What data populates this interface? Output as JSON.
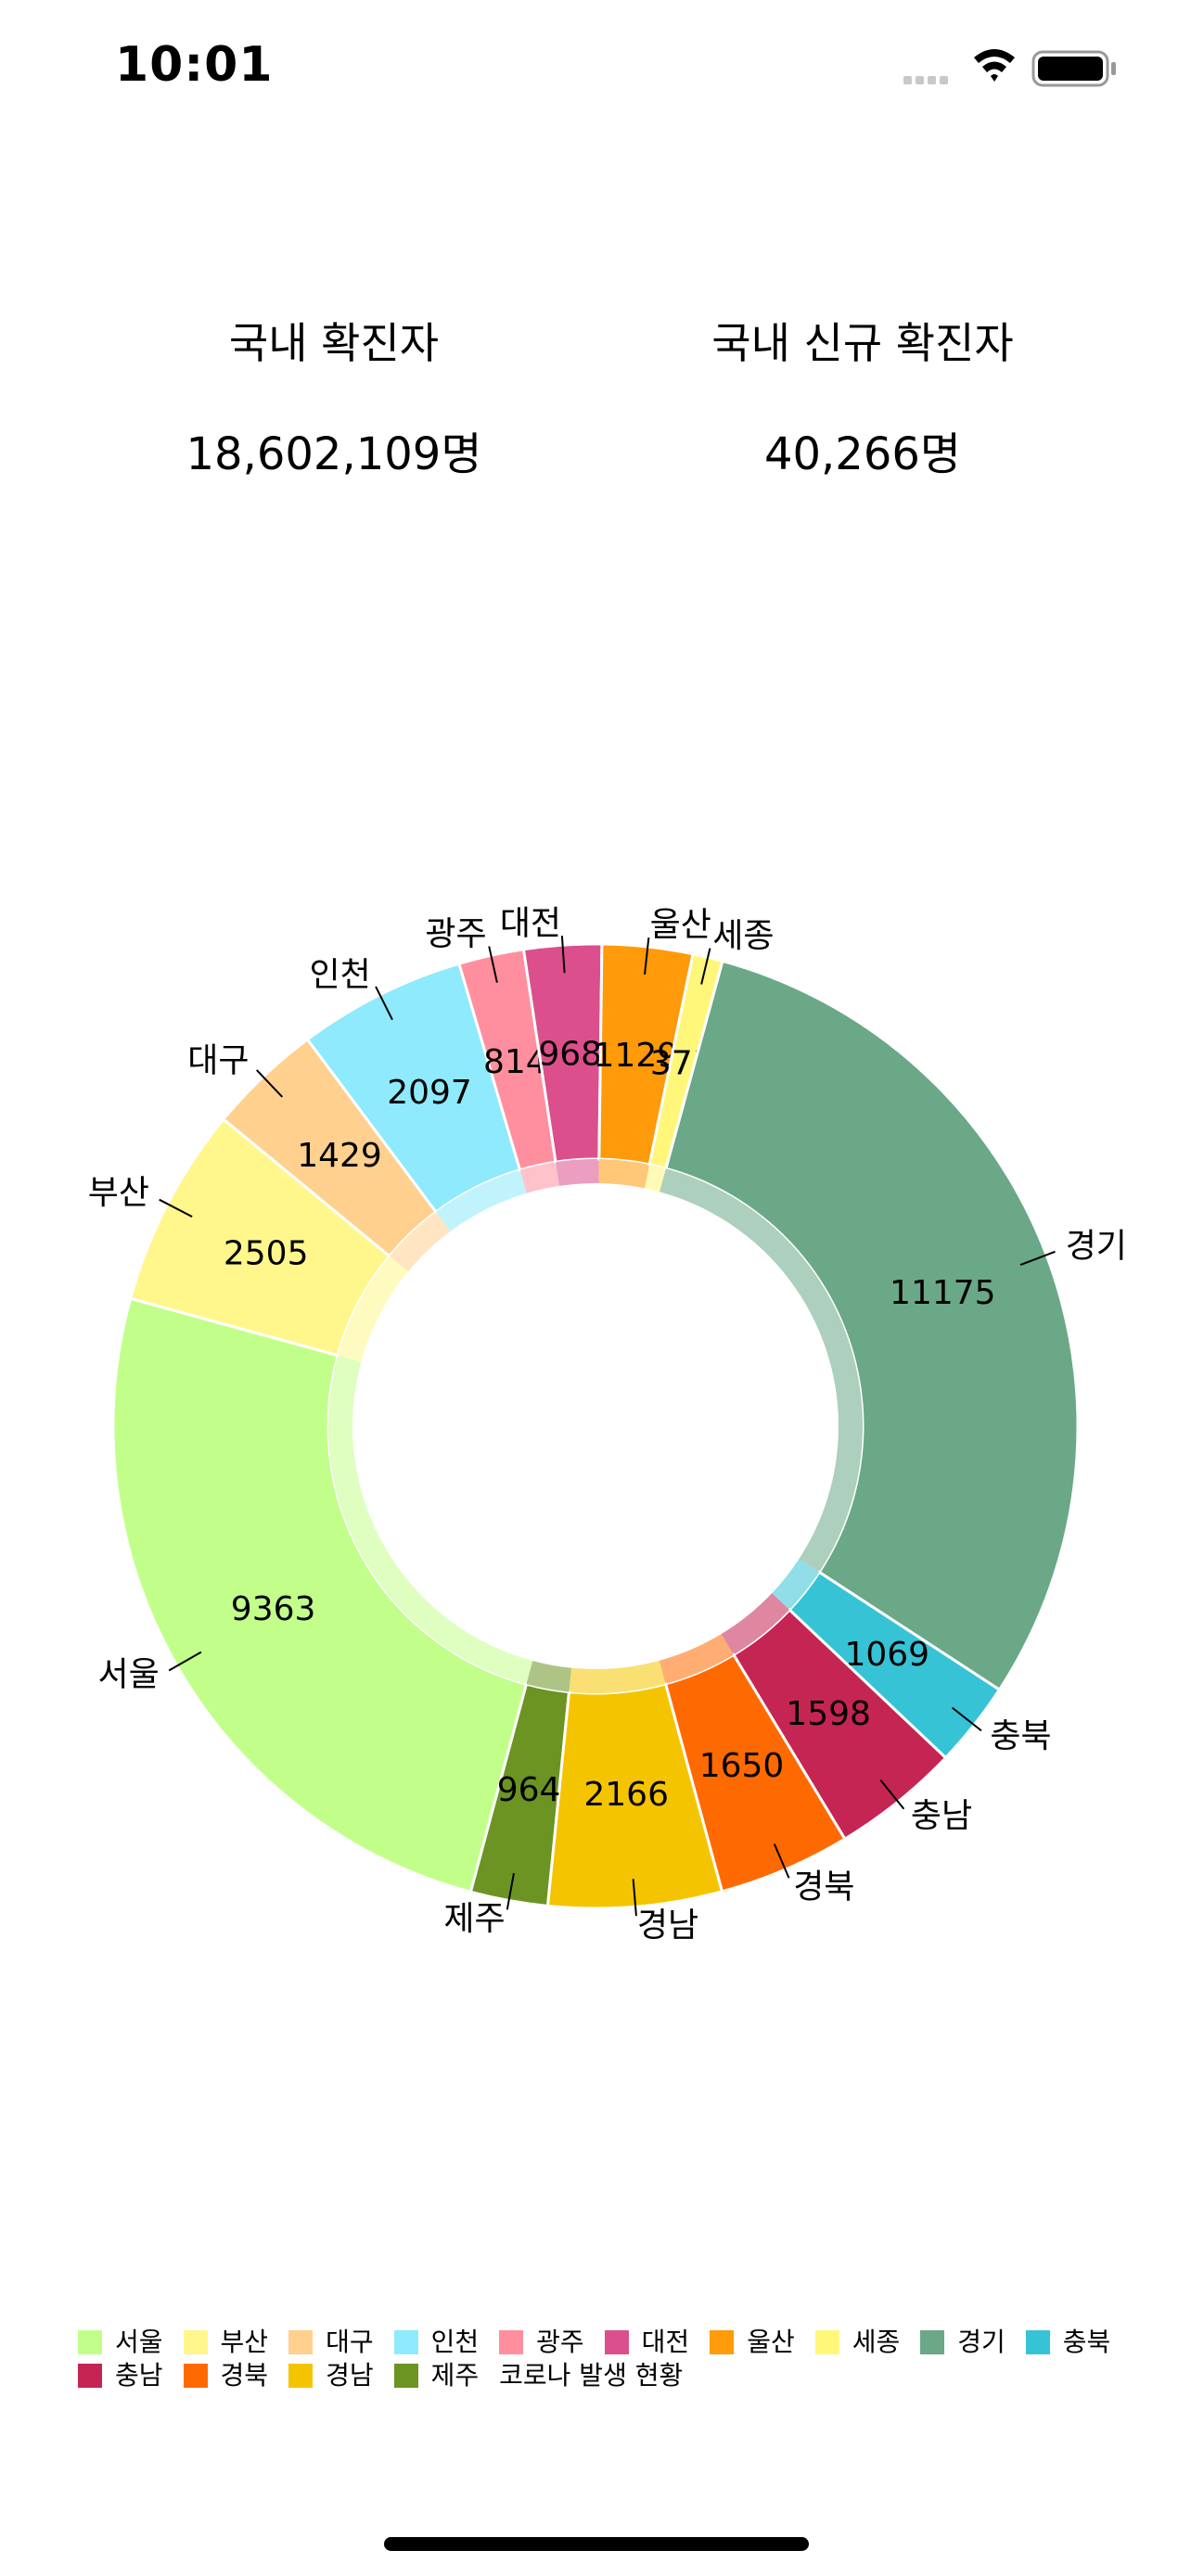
{
  "status_bar": {
    "time": "10:01"
  },
  "stats": {
    "total_label": "국내 확진자",
    "total_value": "18,602,109명",
    "new_label": "국내 신규 확진자",
    "new_value": "40,266명"
  },
  "chart_data": {
    "type": "pie",
    "donut": true,
    "title": "코로나 발생 현황",
    "start_angle_deg": 105,
    "slices": [
      {
        "label": "서울",
        "value": 9363,
        "color": "#c2ff8a"
      },
      {
        "label": "부산",
        "value": 2505,
        "color": "#fff78c"
      },
      {
        "label": "대구",
        "value": 1429,
        "color": "#ffd08e"
      },
      {
        "label": "인천",
        "value": 2097,
        "color": "#8eeafc"
      },
      {
        "label": "광주",
        "value": 814,
        "color": "#ff8f9f"
      },
      {
        "label": "대전",
        "value": 968,
        "color": "#db4f8c"
      },
      {
        "label": "울산",
        "value": 1129,
        "color": "#ff9a0a"
      },
      {
        "label": "세종",
        "value": 375,
        "color": "#fff77a"
      },
      {
        "label": "경기",
        "value": 11175,
        "color": "#6aa887"
      },
      {
        "label": "충북",
        "value": 1069,
        "color": "#37c3d6"
      },
      {
        "label": "충남",
        "value": 1598,
        "color": "#c52553"
      },
      {
        "label": "경북",
        "value": 1650,
        "color": "#ff6a00"
      },
      {
        "label": "경남",
        "value": 2166,
        "color": "#f5c400"
      },
      {
        "label": "제주",
        "value": 964,
        "color": "#6b9423"
      }
    ],
    "legend_position": "bottom-left"
  }
}
